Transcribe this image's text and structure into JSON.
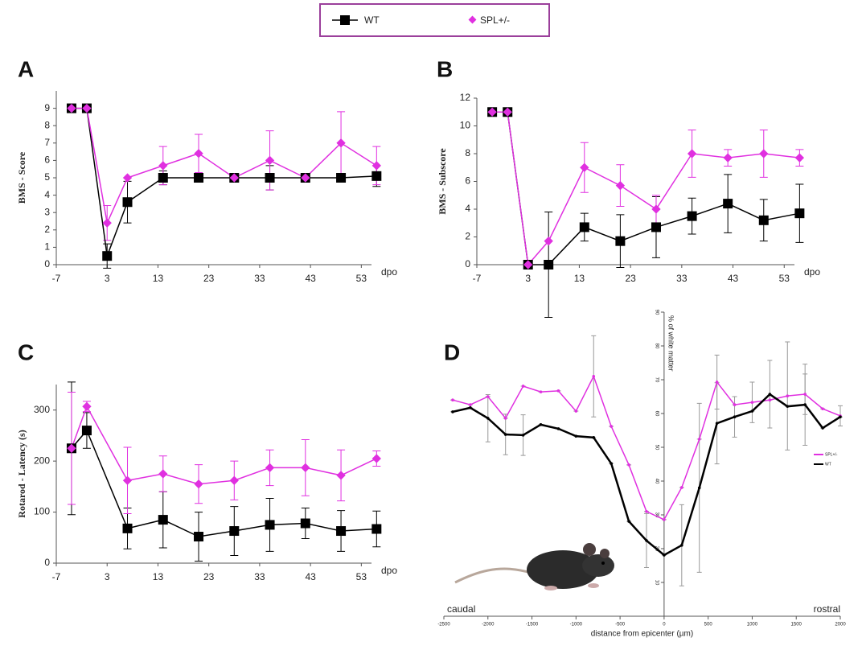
{
  "chart_data": [
    {
      "type": "line",
      "title": "A",
      "ylabel": "BMS - Score",
      "xlabel": "dpo",
      "x": [
        -4,
        -1,
        3,
        7,
        14,
        21,
        28,
        35,
        42,
        49,
        56
      ],
      "xlim": [
        -7,
        55
      ],
      "xticks": [
        -7,
        3,
        13,
        23,
        33,
        43,
        53
      ],
      "ylim": [
        0,
        10
      ],
      "yticks": [
        0,
        1,
        2,
        3,
        4,
        5,
        6,
        7,
        8,
        9
      ],
      "series": [
        {
          "name": "WT",
          "color": "#000000",
          "marker": "square",
          "values": [
            9,
            9,
            0.5,
            3.6,
            5,
            5,
            5,
            5,
            5,
            5,
            5.1
          ],
          "errors": [
            0,
            0,
            0.7,
            1.2,
            0.4,
            0,
            0,
            0.7,
            0,
            0,
            0.6
          ]
        },
        {
          "name": "SPL+/-",
          "color": "#e030e0",
          "marker": "diamond",
          "values": [
            9,
            9,
            2.4,
            5,
            5.7,
            6.4,
            5,
            6,
            5,
            7,
            5.7
          ],
          "errors": [
            0,
            0,
            1,
            0,
            1.1,
            1.1,
            0,
            1.7,
            0,
            1.8,
            1.1
          ]
        }
      ]
    },
    {
      "type": "line",
      "title": "B",
      "ylabel": "BMS - Subscore",
      "xlabel": "dpo",
      "x": [
        -4,
        -1,
        3,
        7,
        14,
        21,
        28,
        35,
        42,
        49,
        56
      ],
      "xlim": [
        -7,
        55
      ],
      "xticks": [
        -7,
        3,
        13,
        23,
        33,
        43,
        53
      ],
      "ylim": [
        0,
        12
      ],
      "yticks": [
        0,
        2,
        4,
        6,
        8,
        10,
        12
      ],
      "series": [
        {
          "color": "#000000",
          "marker": "square",
          "values": [
            11,
            11,
            0,
            0,
            2.7,
            1.7,
            2.7,
            3.5,
            4.4,
            3.2,
            3.7
          ],
          "errors": [
            0,
            0,
            0,
            3.8,
            1,
            1.9,
            2.2,
            1.3,
            2.1,
            1.5,
            2.1
          ]
        },
        {
          "color": "#e030e0",
          "marker": "diamond",
          "values": [
            11,
            11,
            0,
            1.7,
            7,
            5.7,
            4,
            8,
            7.7,
            8,
            7.7
          ],
          "errors": [
            0,
            0,
            0,
            0,
            1.8,
            1.5,
            1,
            1.7,
            0.6,
            1.7,
            0.6
          ]
        }
      ]
    },
    {
      "type": "line",
      "title": "C",
      "ylabel": "Rotarod - Latency (s)",
      "xlabel": "dpo",
      "x": [
        -4,
        -1,
        7,
        14,
        21,
        28,
        35,
        42,
        49,
        56
      ],
      "xlim": [
        -7,
        55
      ],
      "xticks": [
        -7,
        3,
        13,
        23,
        33,
        43,
        53
      ],
      "ylim": [
        0,
        350
      ],
      "yticks": [
        0,
        100,
        200,
        300
      ],
      "series": [
        {
          "color": "#000000",
          "marker": "square",
          "values": [
            225,
            260,
            68,
            85,
            52,
            63,
            75,
            78,
            63,
            67
          ],
          "errors": [
            130,
            35,
            40,
            55,
            48,
            48,
            52,
            30,
            40,
            35
          ]
        },
        {
          "color": "#e030e0",
          "marker": "diamond",
          "values": [
            225,
            307,
            162,
            175,
            155,
            162,
            187,
            187,
            172,
            205
          ],
          "errors": [
            110,
            10,
            65,
            35,
            38,
            38,
            35,
            55,
            50,
            15
          ]
        }
      ]
    },
    {
      "type": "line",
      "title": "D",
      "ylabel": "% of white matter",
      "xlabel": "distance from epicenter (µm)",
      "annotations": [
        "caudal",
        "rostral"
      ],
      "x": [
        -2400,
        -2200,
        -2000,
        -1800,
        -1600,
        -1400,
        -1200,
        -1000,
        -800,
        -600,
        -400,
        -200,
        0,
        200,
        400,
        600,
        800,
        1000,
        1200,
        1400,
        1600,
        1800,
        2000
      ],
      "xlim": [
        -2500,
        2000
      ],
      "xticks": [
        -2500,
        -2000,
        -1500,
        -1000,
        -500,
        0,
        500,
        1000,
        1500,
        2000
      ],
      "ylim": [
        0,
        90
      ],
      "yticks": [
        10,
        20,
        30,
        40,
        50,
        60,
        70,
        80,
        90
      ],
      "series": [
        {
          "name": "SPL+/-",
          "color": "#e030e0",
          "marker": "dot",
          "values": [
            64,
            62.6,
            65,
            58.6,
            68.1,
            66.4,
            66.7,
            60.7,
            71,
            56.2,
            44.8,
            31,
            28.6,
            38.1,
            52.4,
            69.3,
            62.6,
            63.3,
            64,
            65.2,
            65.7,
            61.4,
            59.3
          ],
          "errors": [
            0,
            0,
            0,
            0,
            0,
            0,
            0,
            0,
            12,
            0,
            0,
            0,
            0,
            0,
            0,
            8,
            0,
            6,
            0,
            16,
            6,
            0,
            3
          ]
        },
        {
          "name": "WT",
          "color": "#000000",
          "marker": "dot",
          "values": [
            60.5,
            61.7,
            58.6,
            53.8,
            53.6,
            56.7,
            55.5,
            53.3,
            52.9,
            45.2,
            28.1,
            22.4,
            18.1,
            21,
            38,
            57.1,
            59,
            60.7,
            65.7,
            62.1,
            62.6,
            55.7,
            59
          ],
          "errors": [
            0,
            0,
            7,
            6,
            6,
            0,
            0,
            0,
            0,
            0,
            0,
            8,
            0,
            12,
            25,
            12,
            6,
            0,
            10,
            0,
            12,
            0,
            0
          ]
        }
      ]
    }
  ]
}
